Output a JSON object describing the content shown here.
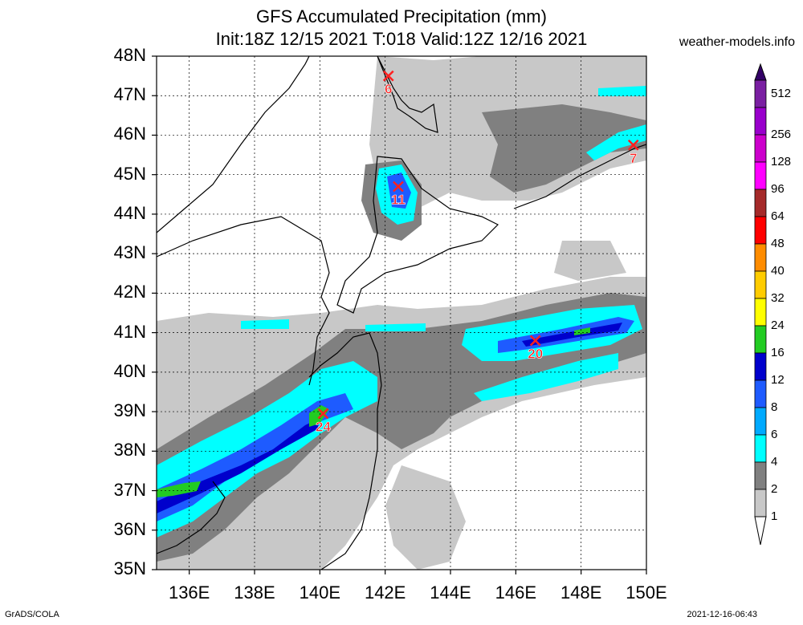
{
  "title_line1": "GFS Accumulated Precipitation (mm)",
  "title_line2": "Init:18Z 12/15 2021 T:018 Valid:12Z 12/16 2021",
  "site": "weather-models.info",
  "credit": "GrADS/COLA",
  "timestamp": "2021-12-16-06:43",
  "lat_labels": [
    "48N",
    "47N",
    "46N",
    "45N",
    "44N",
    "43N",
    "42N",
    "41N",
    "40N",
    "39N",
    "38N",
    "37N",
    "36N",
    "35N"
  ],
  "lon_labels": [
    "136E",
    "138E",
    "140E",
    "142E",
    "144E",
    "146E",
    "148E",
    "150E"
  ],
  "colorbar": {
    "labels": [
      "512",
      "256",
      "128",
      "96",
      "64",
      "48",
      "40",
      "32",
      "24",
      "16",
      "12",
      "8",
      "6",
      "4",
      "2",
      "1"
    ],
    "colors": [
      "#7a1fa2",
      "#9900cc",
      "#cc00cc",
      "#ff00ff",
      "#a52a2a",
      "#ff0000",
      "#ff8c00",
      "#ffcc00",
      "#ffff00",
      "#22cc22",
      "#0000cc",
      "#1e5bff",
      "#00aaff",
      "#00ffff",
      "#808080",
      "#c8c8c8"
    ]
  },
  "max_markers": [
    {
      "label": "6",
      "lon": 142.1,
      "lat": 47.5
    },
    {
      "label": "11",
      "lon": 142.4,
      "lat": 44.7
    },
    {
      "label": "7",
      "lon": 149.6,
      "lat": 45.75
    },
    {
      "label": "20",
      "lon": 146.6,
      "lat": 40.8
    },
    {
      "label": "24",
      "lon": 140.1,
      "lat": 38.95
    }
  ],
  "colors": {
    "marker": "#ff2020",
    "frame": "#000000"
  }
}
